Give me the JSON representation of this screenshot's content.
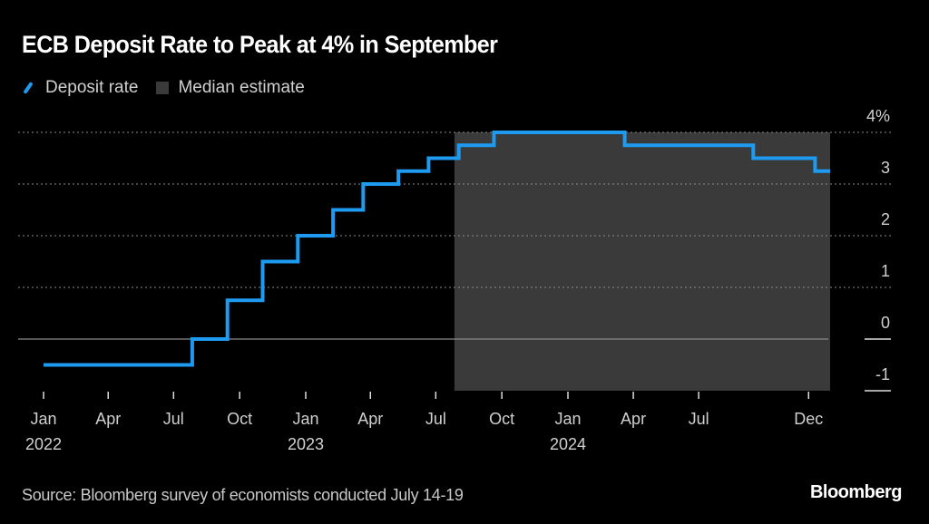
{
  "chart_data": {
    "type": "line",
    "title": "ECB Deposit Rate to Peak at 4% in September",
    "legend": [
      {
        "label": "Deposit rate",
        "color": "#1e9bf0",
        "kind": "line"
      },
      {
        "label": "Median estimate",
        "color": "#3a3a3a",
        "kind": "shaded-region"
      }
    ],
    "legend_placement": "top-left",
    "ylim": [
      -1,
      4
    ],
    "yticks": [
      {
        "value": 4,
        "label": "4%"
      },
      {
        "value": 3,
        "label": "3"
      },
      {
        "value": 2,
        "label": "2"
      },
      {
        "value": 1,
        "label": "1"
      },
      {
        "value": 0,
        "label": "0"
      },
      {
        "value": -1,
        "label": "-1"
      }
    ],
    "y_axis_side": "right",
    "grid": "dotted horizontal",
    "xlim": [
      "2022-01-01",
      "2024-12-31"
    ],
    "xticks": [
      {
        "date": "2022-01-01",
        "label": "Jan",
        "year": "2022"
      },
      {
        "date": "2022-04-01",
        "label": "Apr"
      },
      {
        "date": "2022-07-01",
        "label": "Jul"
      },
      {
        "date": "2022-10-01",
        "label": "Oct"
      },
      {
        "date": "2023-01-01",
        "label": "Jan",
        "year": "2023"
      },
      {
        "date": "2023-04-01",
        "label": "Apr"
      },
      {
        "date": "2023-07-01",
        "label": "Jul"
      },
      {
        "date": "2023-10-01",
        "label": "Oct"
      },
      {
        "date": "2024-01-01",
        "label": "Jan",
        "year": "2024"
      },
      {
        "date": "2024-04-01",
        "label": "Apr"
      },
      {
        "date": "2024-07-01",
        "label": "Jul"
      },
      {
        "date": "2024-12-01",
        "label": "Dec"
      }
    ],
    "series": [
      {
        "name": "Deposit rate",
        "step": true,
        "points": [
          [
            "2022-01-01",
            -0.5
          ],
          [
            "2022-07-27",
            0.0
          ],
          [
            "2022-09-14",
            0.75
          ],
          [
            "2022-11-02",
            1.5
          ],
          [
            "2022-12-21",
            2.0
          ],
          [
            "2023-02-08",
            2.5
          ],
          [
            "2023-03-22",
            3.0
          ],
          [
            "2023-05-10",
            3.25
          ],
          [
            "2023-06-21",
            3.5
          ],
          [
            "2023-08-02",
            3.75
          ],
          [
            "2023-09-20",
            4.0
          ],
          [
            "2024-03-20",
            3.75
          ],
          [
            "2024-09-15",
            3.5
          ],
          [
            "2024-12-10",
            3.25
          ],
          [
            "2024-12-31",
            3.25
          ]
        ]
      }
    ],
    "shaded_region": {
      "label": "Median estimate",
      "from": "2023-07-27",
      "to": "2024-12-31"
    }
  },
  "source": "Source: Bloomberg survey of economists conducted July 14-19",
  "brand": "Bloomberg"
}
